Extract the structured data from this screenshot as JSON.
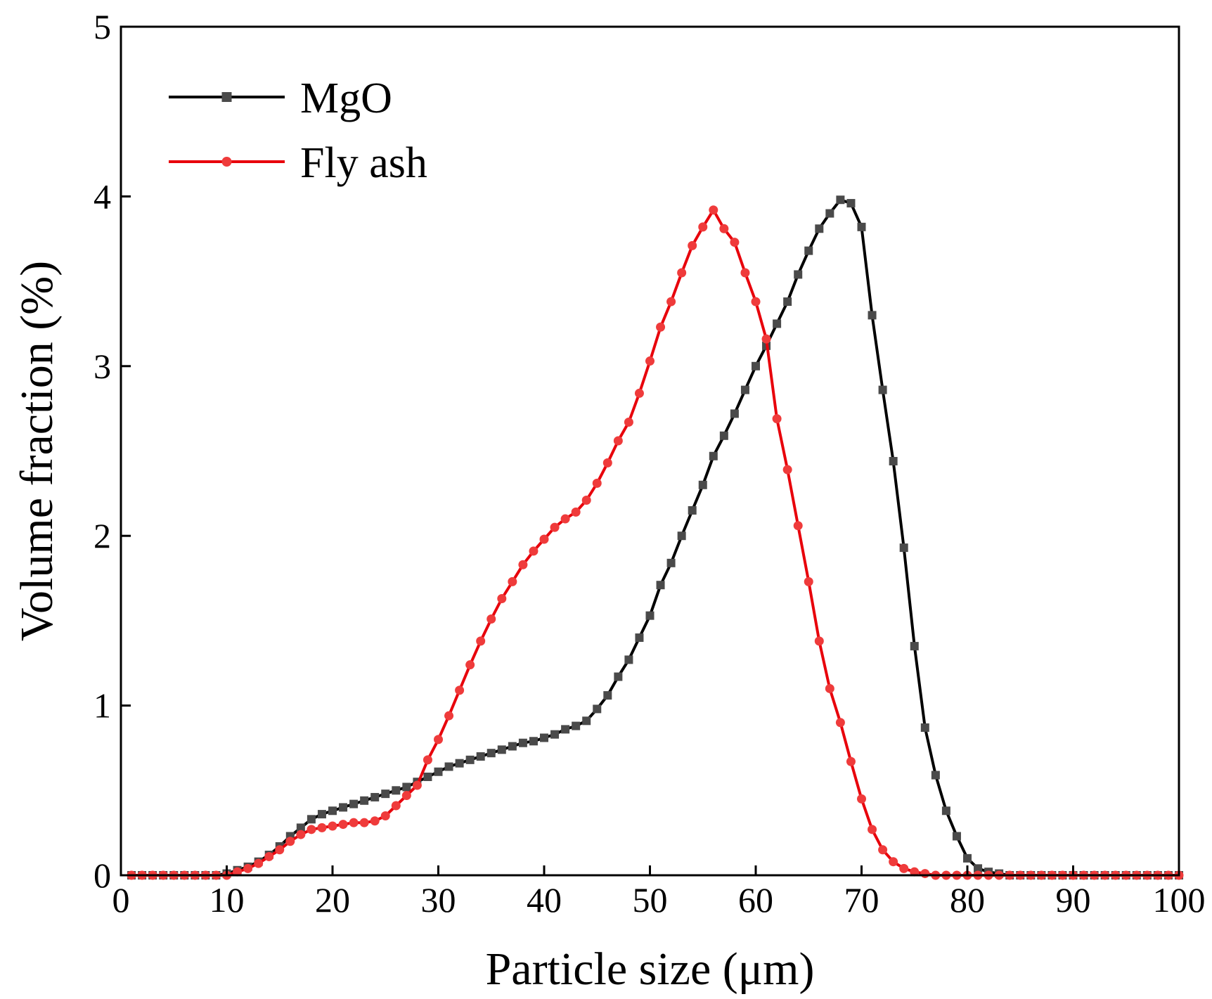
{
  "chart_data": {
    "type": "line",
    "title": "",
    "xlabel": "Particle size (μm)",
    "ylabel": "Volume fraction (%)",
    "xlim": [
      0,
      100
    ],
    "ylim": [
      0,
      5
    ],
    "xticks": [
      0,
      10,
      20,
      30,
      40,
      50,
      60,
      70,
      80,
      90,
      100
    ],
    "yticks": [
      0,
      1,
      2,
      3,
      4,
      5
    ],
    "xtick_labels": [
      "0",
      "10",
      "20",
      "30",
      "40",
      "50",
      "60",
      "70",
      "80",
      "90",
      "100"
    ],
    "ytick_labels": [
      "0",
      "1",
      "2",
      "3",
      "4",
      "5"
    ],
    "grid": false,
    "legend": {
      "position": "top-left"
    },
    "series": [
      {
        "name": "MgO",
        "color": "#000000",
        "marker_color": "#4a4a4a",
        "marker": "square",
        "x": [
          1,
          2,
          3,
          4,
          5,
          6,
          7,
          8,
          9,
          10,
          11,
          12,
          13,
          14,
          15,
          16,
          17,
          18,
          19,
          20,
          21,
          22,
          23,
          24,
          25,
          26,
          27,
          28,
          29,
          30,
          31,
          32,
          33,
          34,
          35,
          36,
          37,
          38,
          39,
          40,
          41,
          42,
          43,
          44,
          45,
          46,
          47,
          48,
          49,
          50,
          51,
          52,
          53,
          54,
          55,
          56,
          57,
          58,
          59,
          60,
          61,
          62,
          63,
          64,
          65,
          66,
          67,
          68,
          69,
          70,
          71,
          72,
          73,
          74,
          75,
          76,
          77,
          78,
          79,
          80,
          81,
          82,
          83,
          84,
          85,
          86,
          87,
          88,
          89,
          90,
          91,
          92,
          93,
          94,
          95,
          96,
          97,
          98,
          99,
          100
        ],
        "y": [
          0,
          0,
          0,
          0,
          0,
          0,
          0,
          0,
          0,
          0.01,
          0.03,
          0.05,
          0.08,
          0.12,
          0.17,
          0.23,
          0.28,
          0.33,
          0.36,
          0.38,
          0.4,
          0.42,
          0.44,
          0.46,
          0.48,
          0.5,
          0.52,
          0.55,
          0.58,
          0.61,
          0.64,
          0.66,
          0.68,
          0.7,
          0.72,
          0.74,
          0.76,
          0.78,
          0.79,
          0.81,
          0.83,
          0.86,
          0.88,
          0.91,
          0.98,
          1.06,
          1.17,
          1.27,
          1.4,
          1.53,
          1.71,
          1.84,
          2.0,
          2.15,
          2.3,
          2.47,
          2.59,
          2.72,
          2.86,
          3.0,
          3.12,
          3.25,
          3.38,
          3.54,
          3.68,
          3.81,
          3.9,
          3.98,
          3.96,
          3.82,
          3.3,
          2.86,
          2.44,
          1.93,
          1.35,
          0.87,
          0.59,
          0.38,
          0.23,
          0.1,
          0.04,
          0.02,
          0.01,
          0,
          0,
          0,
          0,
          0,
          0,
          0,
          0,
          0,
          0,
          0,
          0,
          0,
          0,
          0,
          0,
          0
        ]
      },
      {
        "name": "Fly ash",
        "color": "#e8000b",
        "marker_color": "#ef3b3b",
        "marker": "circle",
        "x": [
          1,
          2,
          3,
          4,
          5,
          6,
          7,
          8,
          9,
          10,
          11,
          12,
          13,
          14,
          15,
          16,
          17,
          18,
          19,
          20,
          21,
          22,
          23,
          24,
          25,
          26,
          27,
          28,
          29,
          30,
          31,
          32,
          33,
          34,
          35,
          36,
          37,
          38,
          39,
          40,
          41,
          42,
          43,
          44,
          45,
          46,
          47,
          48,
          49,
          50,
          51,
          52,
          53,
          54,
          55,
          56,
          57,
          58,
          59,
          60,
          61,
          62,
          63,
          64,
          65,
          66,
          67,
          68,
          69,
          70,
          71,
          72,
          73,
          74,
          75,
          76,
          77,
          78,
          79,
          80,
          81,
          82,
          83,
          84,
          85,
          86,
          87,
          88,
          89,
          90,
          91,
          92,
          93,
          94,
          95,
          96,
          97,
          98,
          99,
          100
        ],
        "y": [
          0,
          0,
          0,
          0,
          0,
          0,
          0,
          0,
          0,
          0,
          0.02,
          0.04,
          0.07,
          0.11,
          0.15,
          0.2,
          0.24,
          0.27,
          0.28,
          0.29,
          0.3,
          0.31,
          0.31,
          0.32,
          0.35,
          0.41,
          0.47,
          0.53,
          0.68,
          0.8,
          0.94,
          1.09,
          1.24,
          1.38,
          1.51,
          1.63,
          1.73,
          1.83,
          1.91,
          1.98,
          2.05,
          2.1,
          2.14,
          2.21,
          2.31,
          2.43,
          2.56,
          2.67,
          2.84,
          3.03,
          3.23,
          3.38,
          3.55,
          3.71,
          3.82,
          3.92,
          3.81,
          3.73,
          3.55,
          3.38,
          3.16,
          2.69,
          2.39,
          2.06,
          1.73,
          1.38,
          1.1,
          0.9,
          0.67,
          0.45,
          0.27,
          0.15,
          0.08,
          0.04,
          0.02,
          0.01,
          0,
          0,
          0,
          0,
          0,
          0,
          0,
          0,
          0,
          0,
          0,
          0,
          0,
          0,
          0,
          0,
          0,
          0,
          0,
          0,
          0,
          0,
          0,
          0
        ]
      }
    ]
  }
}
